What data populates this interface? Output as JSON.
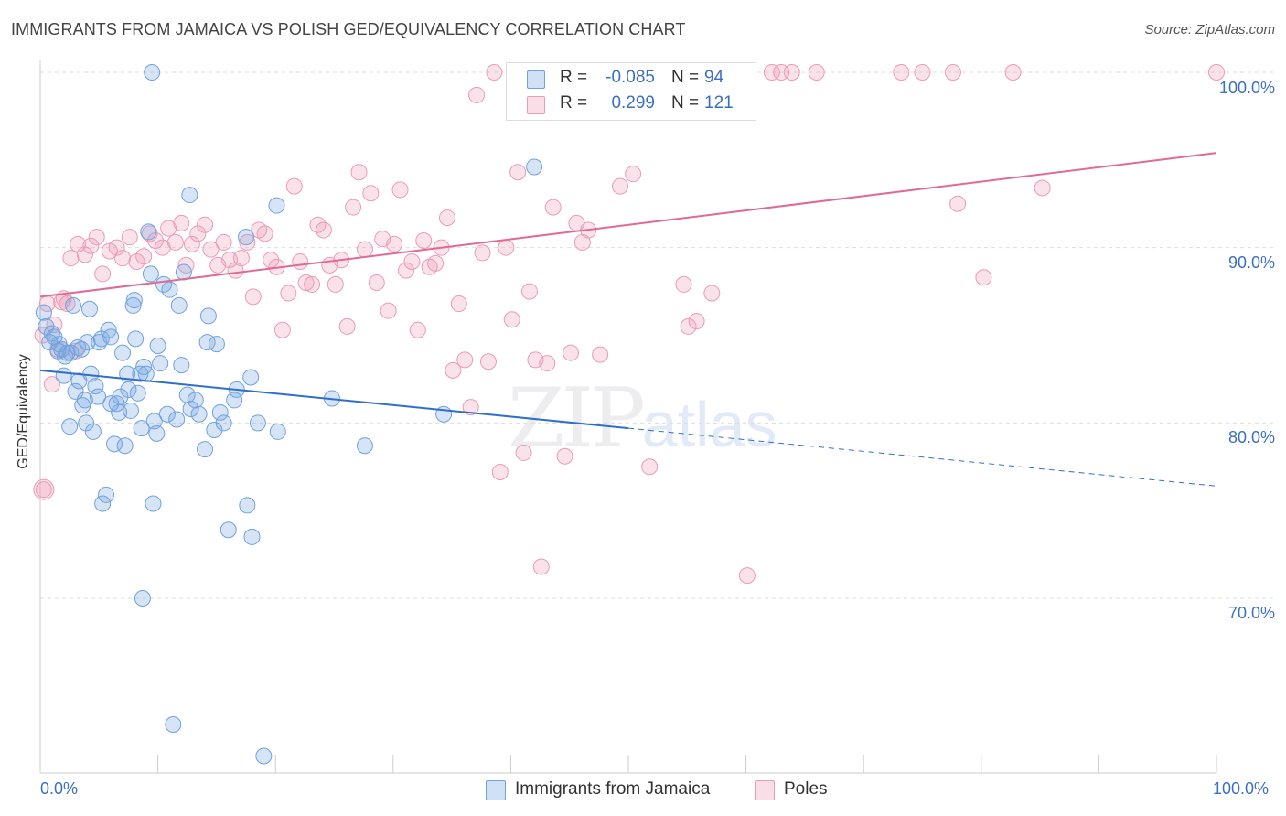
{
  "header": {
    "title": "IMMIGRANTS FROM JAMAICA VS POLISH GED/EQUIVALENCY CORRELATION CHART",
    "source": "Source: ZipAtlas.com"
  },
  "watermark": {
    "zip": "ZIP",
    "atlas": "atlas"
  },
  "legend": {
    "rows": [
      {
        "r_label": "R =",
        "r_value": "-0.085",
        "n_label": "N =",
        "n_value": "94",
        "color": "#6fa2e0"
      },
      {
        "r_label": "R =",
        "r_value": "0.299",
        "n_label": "N =",
        "n_value": "121",
        "color": "#f0a0b8"
      }
    ]
  },
  "colors": {
    "blue_fill": "rgba(120,165,225,0.30)",
    "blue_stroke": "#6fa2e0",
    "blue_line": "#2e6fcc",
    "pink_fill": "rgba(240,160,185,0.30)",
    "pink_stroke": "#ec9bb5",
    "pink_line": "#e06a94",
    "axis_text": "#3b6fc4",
    "grid": "#dddddd"
  },
  "chart_data": {
    "type": "scatter",
    "title": "IMMIGRANTS FROM JAMAICA VS POLISH GED/EQUIVALENCY CORRELATION CHART",
    "xlabel": "",
    "ylabel": "GED/Equivalency",
    "xlim": [
      0,
      100
    ],
    "ylim": [
      59,
      101.5
    ],
    "x_tick_labels": [
      "0.0%",
      "100.0%"
    ],
    "y_ticks": [
      70,
      80,
      90,
      100
    ],
    "y_tick_labels": [
      "70.0%",
      "80.0%",
      "90.0%",
      "100.0%"
    ],
    "grid": true,
    "legend_position": "bottom",
    "series": [
      {
        "name": "Immigrants from Jamaica",
        "r": -0.085,
        "n": 94,
        "trend": {
          "x0": 0,
          "y0": 83,
          "x1": 50,
          "y1": 79.7,
          "dashed_to_x": 100,
          "dashed_to_y": 76.4
        },
        "points": [
          [
            0.3,
            86.3
          ],
          [
            0.5,
            85.5
          ],
          [
            0.8,
            84.6
          ],
          [
            1.0,
            85.1
          ],
          [
            1.2,
            84.9
          ],
          [
            1.5,
            84.1
          ],
          [
            1.6,
            84.5
          ],
          [
            1.8,
            84.2
          ],
          [
            2.0,
            82.7
          ],
          [
            2.1,
            83.8
          ],
          [
            2.3,
            84.0
          ],
          [
            2.5,
            79.8
          ],
          [
            2.6,
            84.0
          ],
          [
            2.8,
            86.7
          ],
          [
            3.0,
            81.8
          ],
          [
            3.2,
            84.3
          ],
          [
            3.3,
            82.4
          ],
          [
            3.5,
            84.2
          ],
          [
            3.6,
            81.0
          ],
          [
            3.8,
            81.3
          ],
          [
            3.9,
            80.0
          ],
          [
            4.0,
            84.6
          ],
          [
            4.2,
            86.5
          ],
          [
            4.3,
            82.8
          ],
          [
            4.5,
            79.5
          ],
          [
            4.7,
            82.1
          ],
          [
            4.9,
            81.5
          ],
          [
            5.0,
            84.6
          ],
          [
            5.2,
            84.8
          ],
          [
            5.3,
            75.4
          ],
          [
            5.6,
            75.9
          ],
          [
            5.8,
            85.3
          ],
          [
            6.0,
            84.9
          ],
          [
            6.0,
            81.1
          ],
          [
            6.3,
            78.8
          ],
          [
            6.5,
            81.1
          ],
          [
            6.7,
            80.6
          ],
          [
            6.8,
            81.5
          ],
          [
            7.0,
            84.0
          ],
          [
            7.2,
            78.7
          ],
          [
            7.4,
            82.8
          ],
          [
            7.5,
            81.9
          ],
          [
            7.7,
            80.7
          ],
          [
            7.9,
            86.7
          ],
          [
            8.0,
            87.0
          ],
          [
            8.1,
            84.8
          ],
          [
            8.3,
            81.7
          ],
          [
            8.5,
            82.8
          ],
          [
            8.6,
            79.7
          ],
          [
            8.7,
            70.0
          ],
          [
            8.8,
            83.2
          ],
          [
            9.0,
            82.8
          ],
          [
            9.2,
            90.9
          ],
          [
            9.4,
            88.5
          ],
          [
            9.6,
            75.4
          ],
          [
            9.7,
            80.1
          ],
          [
            9.9,
            79.4
          ],
          [
            10.0,
            84.4
          ],
          [
            10.2,
            83.4
          ],
          [
            10.5,
            87.9
          ],
          [
            10.8,
            80.5
          ],
          [
            11.0,
            87.6
          ],
          [
            11.3,
            62.8
          ],
          [
            11.6,
            80.2
          ],
          [
            11.8,
            86.7
          ],
          [
            12.0,
            83.3
          ],
          [
            12.2,
            88.6
          ],
          [
            12.5,
            81.6
          ],
          [
            12.8,
            80.8
          ],
          [
            13.2,
            81.3
          ],
          [
            13.5,
            80.5
          ],
          [
            14.0,
            78.5
          ],
          [
            14.2,
            84.6
          ],
          [
            14.3,
            86.1
          ],
          [
            14.8,
            79.6
          ],
          [
            15.0,
            84.5
          ],
          [
            15.3,
            80.6
          ],
          [
            15.6,
            80.0
          ],
          [
            16.0,
            73.9
          ],
          [
            16.5,
            81.3
          ],
          [
            16.7,
            81.9
          ],
          [
            17.6,
            75.3
          ],
          [
            17.9,
            82.6
          ],
          [
            18.0,
            73.5
          ],
          [
            18.5,
            80.0
          ],
          [
            19.0,
            61.0
          ],
          [
            20.2,
            79.5
          ],
          [
            24.8,
            81.4
          ],
          [
            27.6,
            78.7
          ],
          [
            34.3,
            80.5
          ],
          [
            42.0,
            94.6
          ],
          [
            9.5,
            100.0
          ],
          [
            12.7,
            93.0
          ],
          [
            17.5,
            90.6
          ],
          [
            20.1,
            92.4
          ]
        ]
      },
      {
        "name": "Poles",
        "r": 0.299,
        "n": 121,
        "trend": {
          "x0": 0,
          "y0": 87.2,
          "x1": 100,
          "y1": 95.4
        },
        "points": [
          [
            0.2,
            85.0
          ],
          [
            0.6,
            86.8
          ],
          [
            1.0,
            82.2
          ],
          [
            1.2,
            85.6
          ],
          [
            1.5,
            84.2
          ],
          [
            1.8,
            86.9
          ],
          [
            2.0,
            87.1
          ],
          [
            2.3,
            86.8
          ],
          [
            3.0,
            84.1
          ],
          [
            2.6,
            89.4
          ],
          [
            3.2,
            90.2
          ],
          [
            3.8,
            89.6
          ],
          [
            4.3,
            90.1
          ],
          [
            4.8,
            90.6
          ],
          [
            5.3,
            88.5
          ],
          [
            5.9,
            89.8
          ],
          [
            6.5,
            90.0
          ],
          [
            7.0,
            89.4
          ],
          [
            7.6,
            90.6
          ],
          [
            8.2,
            89.2
          ],
          [
            8.8,
            89.5
          ],
          [
            9.3,
            90.8
          ],
          [
            9.8,
            90.4
          ],
          [
            10.4,
            90.0
          ],
          [
            10.9,
            91.1
          ],
          [
            11.5,
            90.3
          ],
          [
            12.0,
            91.4
          ],
          [
            12.4,
            89.0
          ],
          [
            12.9,
            90.2
          ],
          [
            13.4,
            90.8
          ],
          [
            14.0,
            91.3
          ],
          [
            14.5,
            89.9
          ],
          [
            15.1,
            89.0
          ],
          [
            15.6,
            90.3
          ],
          [
            16.1,
            89.3
          ],
          [
            16.6,
            88.7
          ],
          [
            17.1,
            89.4
          ],
          [
            17.6,
            90.3
          ],
          [
            18.1,
            87.2
          ],
          [
            18.6,
            91.0
          ],
          [
            19.1,
            90.8
          ],
          [
            19.6,
            89.3
          ],
          [
            20.1,
            88.9
          ],
          [
            20.6,
            85.3
          ],
          [
            21.1,
            87.4
          ],
          [
            21.6,
            93.5
          ],
          [
            22.1,
            89.2
          ],
          [
            22.6,
            88.0
          ],
          [
            23.1,
            87.9
          ],
          [
            23.6,
            91.3
          ],
          [
            24.1,
            91.0
          ],
          [
            24.6,
            89.0
          ],
          [
            25.1,
            87.9
          ],
          [
            25.6,
            89.3
          ],
          [
            26.1,
            85.5
          ],
          [
            26.6,
            92.3
          ],
          [
            27.1,
            94.3
          ],
          [
            27.6,
            89.9
          ],
          [
            28.1,
            93.1
          ],
          [
            28.6,
            88.0
          ],
          [
            29.1,
            90.5
          ],
          [
            29.6,
            86.4
          ],
          [
            30.1,
            90.2
          ],
          [
            30.6,
            93.3
          ],
          [
            31.1,
            88.7
          ],
          [
            31.6,
            89.2
          ],
          [
            32.1,
            85.3
          ],
          [
            32.6,
            90.4
          ],
          [
            33.1,
            88.9
          ],
          [
            33.6,
            89.1
          ],
          [
            34.1,
            90.0
          ],
          [
            34.6,
            91.7
          ],
          [
            35.1,
            83.0
          ],
          [
            35.6,
            86.8
          ],
          [
            36.1,
            83.6
          ],
          [
            36.6,
            80.9
          ],
          [
            37.1,
            98.7
          ],
          [
            37.6,
            89.7
          ],
          [
            38.1,
            83.5
          ],
          [
            38.6,
            100.0
          ],
          [
            39.1,
            77.2
          ],
          [
            39.6,
            90.0
          ],
          [
            40.1,
            85.9
          ],
          [
            40.6,
            94.3
          ],
          [
            41.1,
            78.3
          ],
          [
            41.6,
            87.5
          ],
          [
            42.1,
            83.6
          ],
          [
            42.6,
            71.8
          ],
          [
            43.1,
            83.4
          ],
          [
            43.6,
            92.3
          ],
          [
            44.1,
            100.0
          ],
          [
            44.6,
            78.1
          ],
          [
            45.1,
            84.0
          ],
          [
            45.6,
            91.4
          ],
          [
            46.1,
            90.3
          ],
          [
            46.6,
            91.0
          ],
          [
            47.1,
            100.0
          ],
          [
            47.6,
            83.9
          ],
          [
            48.1,
            100.0
          ],
          [
            49.3,
            93.5
          ],
          [
            50.4,
            94.2
          ],
          [
            50.8,
            100.0
          ],
          [
            51.8,
            77.5
          ],
          [
            53.0,
            98.5
          ],
          [
            53.6,
            100.0
          ],
          [
            54.7,
            87.9
          ],
          [
            55.1,
            85.5
          ],
          [
            55.8,
            85.8
          ],
          [
            57.1,
            87.4
          ],
          [
            60.1,
            71.3
          ],
          [
            62.2,
            100.0
          ],
          [
            63.0,
            100.0
          ],
          [
            63.9,
            100.0
          ],
          [
            66.0,
            100.0
          ],
          [
            73.2,
            100.0
          ],
          [
            75.0,
            100.0
          ],
          [
            77.6,
            100.0
          ],
          [
            82.7,
            100.0
          ],
          [
            85.2,
            93.4
          ],
          [
            100.0,
            100.0
          ],
          [
            0.3,
            76.2
          ],
          [
            80.2,
            88.3
          ],
          [
            78.0,
            92.5
          ]
        ]
      }
    ]
  }
}
